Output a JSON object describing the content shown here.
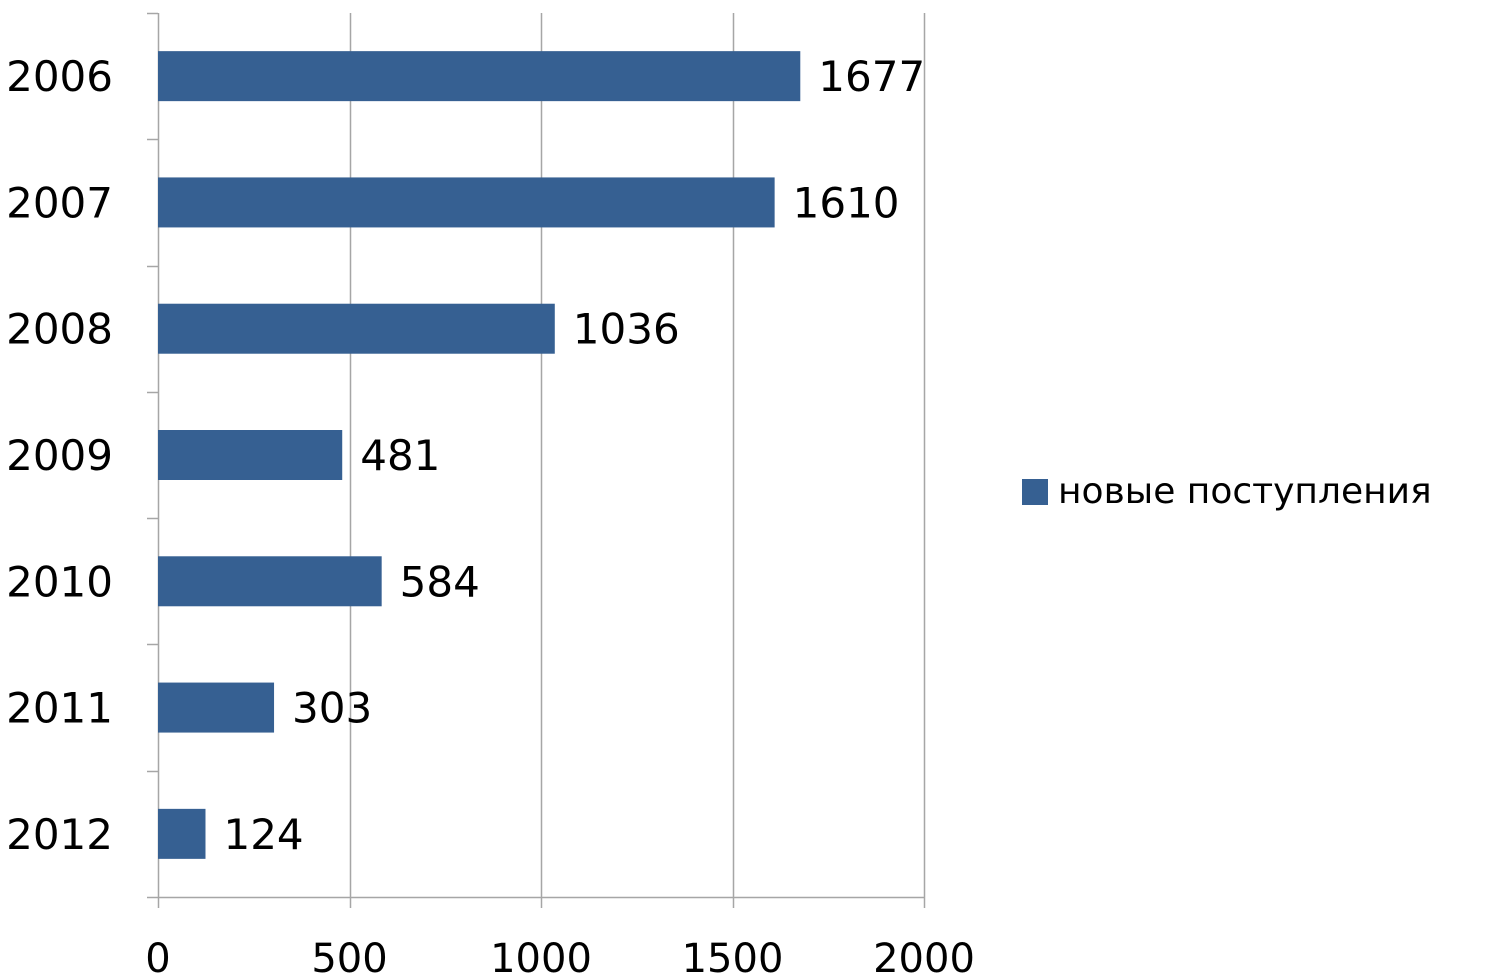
{
  "chart_data": {
    "type": "bar",
    "orientation": "horizontal",
    "categories": [
      "2006",
      "2007",
      "2008",
      "2009",
      "2010",
      "2011",
      "2012"
    ],
    "series": [
      {
        "name": "новые поступления",
        "values": [
          1677,
          1610,
          1036,
          481,
          584,
          303,
          124
        ]
      }
    ],
    "data_labels": [
      "1677",
      "1610",
      "1036",
      "481",
      "584",
      "303",
      "124"
    ],
    "xlim": [
      0,
      2000
    ],
    "xticks": [
      0,
      500,
      1000,
      1500,
      2000
    ],
    "xtick_labels": [
      "0",
      "500",
      "1000",
      "1500",
      "2000"
    ],
    "grid": "vertical major gridlines",
    "legend_position": "right",
    "bar_color": "#366092",
    "gridline_color": "#a6a6a6"
  }
}
